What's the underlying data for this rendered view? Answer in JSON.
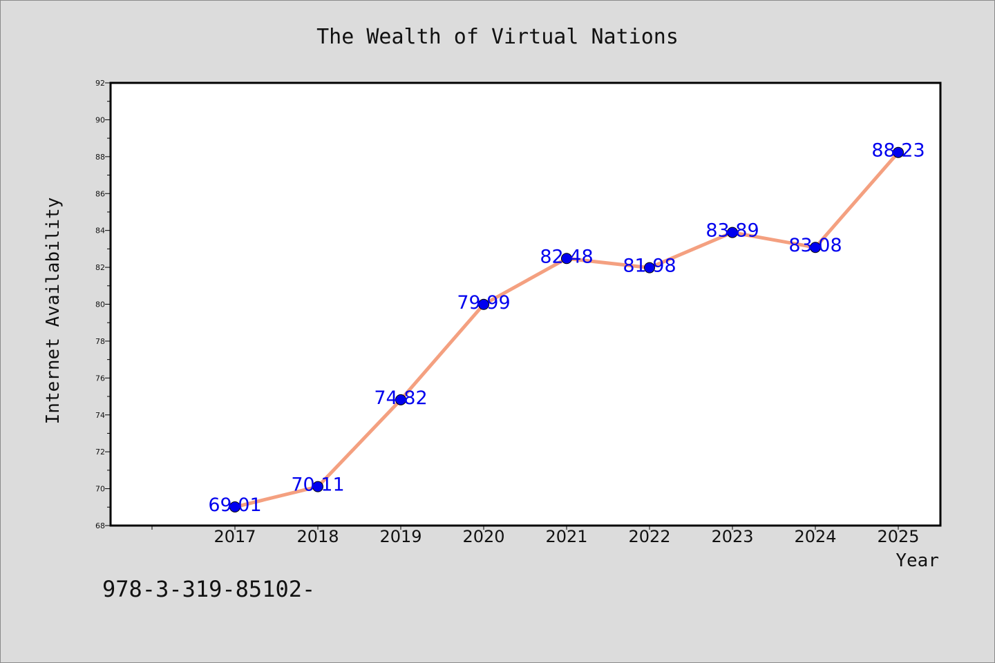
{
  "chart_data": {
    "type": "line",
    "title": "The Wealth of Virtual Nations",
    "xlabel": "Year",
    "ylabel": "Internet Availability",
    "categories": [
      "2017",
      "2018",
      "2019",
      "2020",
      "2021",
      "2022",
      "2023",
      "2024",
      "2025"
    ],
    "series": [
      {
        "values": [
          69.01,
          70.11,
          74.82,
          79.99,
          82.48,
          81.98,
          83.89,
          83.08,
          88.23
        ],
        "labels": [
          "69.01",
          "70.11",
          "74.82",
          "79.99",
          "82.48",
          "81.98",
          "83.89",
          "83.08",
          "88.23"
        ]
      }
    ],
    "ylim": [
      68,
      92
    ],
    "yticks": [
      "68",
      "70",
      "72",
      "74",
      "76",
      "78",
      "80",
      "82",
      "84",
      "86",
      "88",
      "90",
      "92"
    ],
    "grid": false,
    "colors": {
      "line": "#f4a080",
      "marker": "#0000ee",
      "label": "#0000ee",
      "background": "#dcdcdc",
      "plot_bg": "#ffffff"
    }
  },
  "footer_text": "978-3-319-85102-"
}
